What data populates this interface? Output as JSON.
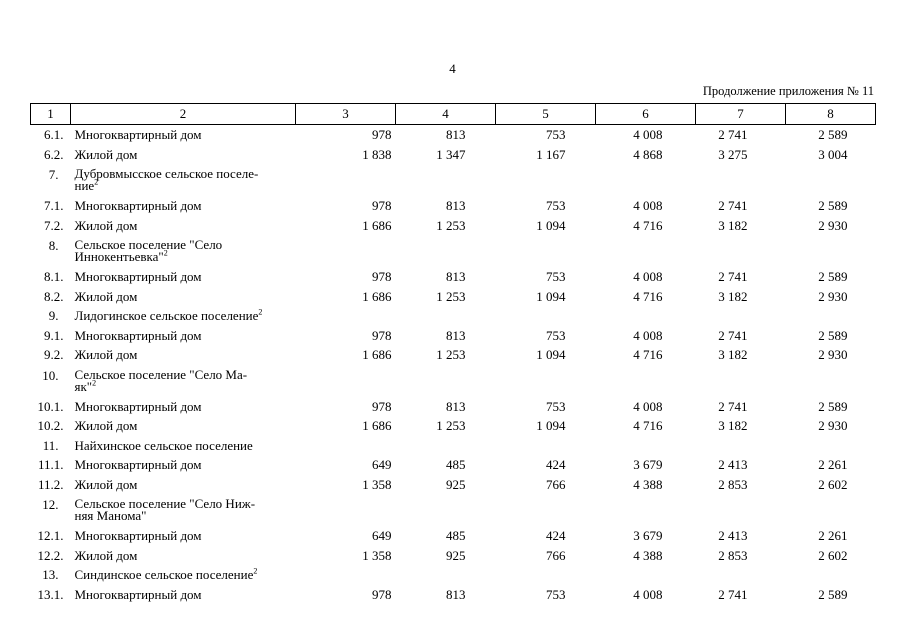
{
  "page_number": "4",
  "caption": "Продолжение приложения № 11",
  "header": [
    "1",
    "2",
    "3",
    "4",
    "5",
    "6",
    "7",
    "8"
  ],
  "rows": [
    {
      "type": "r",
      "num": "6.1.",
      "name": "Многоквартирный дом",
      "vals": [
        "978",
        "813",
        "753",
        "4 008",
        "2 741",
        "2 589"
      ]
    },
    {
      "type": "r",
      "num": "6.2.",
      "name": "Жилой дом",
      "vals": [
        "1 838",
        "1 347",
        "1 167",
        "4 868",
        "3 275",
        "3 004"
      ]
    },
    {
      "type": "h2",
      "num": "7.",
      "name_lines": [
        "Дубровмысское сельское поселе-",
        "ние"
      ],
      "sup": "2"
    },
    {
      "type": "r",
      "num": "7.1.",
      "name": "Многоквартирный дом",
      "vals": [
        "978",
        "813",
        "753",
        "4 008",
        "2 741",
        "2 589"
      ]
    },
    {
      "type": "r",
      "num": "7.2.",
      "name": "Жилой дом",
      "vals": [
        "1 686",
        "1 253",
        "1 094",
        "4 716",
        "3 182",
        "2 930"
      ]
    },
    {
      "type": "h2",
      "num": "8.",
      "name_lines": [
        "Сельское поселение \"Село",
        "Иннокентьевка\""
      ],
      "sup": "2"
    },
    {
      "type": "r",
      "num": "8.1.",
      "name": "Многоквартирный дом",
      "vals": [
        "978",
        "813",
        "753",
        "4 008",
        "2 741",
        "2 589"
      ]
    },
    {
      "type": "r",
      "num": "8.2.",
      "name": "Жилой дом",
      "vals": [
        "1 686",
        "1 253",
        "1 094",
        "4 716",
        "3 182",
        "2 930"
      ]
    },
    {
      "type": "h1",
      "num": "9.",
      "name": "Лидогинское сельское поселение",
      "sup": "2"
    },
    {
      "type": "r",
      "num": "9.1.",
      "name": "Многоквартирный дом",
      "vals": [
        "978",
        "813",
        "753",
        "4 008",
        "2 741",
        "2 589"
      ]
    },
    {
      "type": "r",
      "num": "9.2.",
      "name": "Жилой дом",
      "vals": [
        "1 686",
        "1 253",
        "1 094",
        "4 716",
        "3 182",
        "2 930"
      ]
    },
    {
      "type": "h2",
      "num": "10.",
      "name_lines": [
        "Сельское поселение \"Село Ма-",
        "як\""
      ],
      "sup": "2"
    },
    {
      "type": "r",
      "num": "10.1.",
      "name": "Многоквартирный дом",
      "vals": [
        "978",
        "813",
        "753",
        "4 008",
        "2 741",
        "2 589"
      ]
    },
    {
      "type": "r",
      "num": "10.2.",
      "name": "Жилой дом",
      "vals": [
        "1 686",
        "1 253",
        "1 094",
        "4 716",
        "3 182",
        "2 930"
      ]
    },
    {
      "type": "h1",
      "num": "11.",
      "name": "Найхинское сельское поселение",
      "sup": ""
    },
    {
      "type": "r",
      "num": "11.1.",
      "name": "Многоквартирный дом",
      "vals": [
        "649",
        "485",
        "424",
        "3 679",
        "2 413",
        "2 261"
      ]
    },
    {
      "type": "r",
      "num": "11.2.",
      "name": "Жилой дом",
      "vals": [
        "1 358",
        "925",
        "766",
        "4 388",
        "2 853",
        "2 602"
      ]
    },
    {
      "type": "h2",
      "num": "12.",
      "name_lines": [
        "Сельское поселение \"Село Ниж-",
        "няя Манома\""
      ],
      "sup": ""
    },
    {
      "type": "r",
      "num": "12.1.",
      "name": "Многоквартирный дом",
      "vals": [
        "649",
        "485",
        "424",
        "3 679",
        "2 413",
        "2 261"
      ]
    },
    {
      "type": "r",
      "num": "12.2.",
      "name": "Жилой дом",
      "vals": [
        "1 358",
        "925",
        "766",
        "4 388",
        "2 853",
        "2 602"
      ]
    },
    {
      "type": "h1",
      "num": "13.",
      "name": "Синдинское сельское поселение",
      "sup": "2"
    },
    {
      "type": "r",
      "num": "13.1.",
      "name": "Многоквартирный дом",
      "vals": [
        "978",
        "813",
        "753",
        "4 008",
        "2 741",
        "2 589"
      ]
    }
  ]
}
